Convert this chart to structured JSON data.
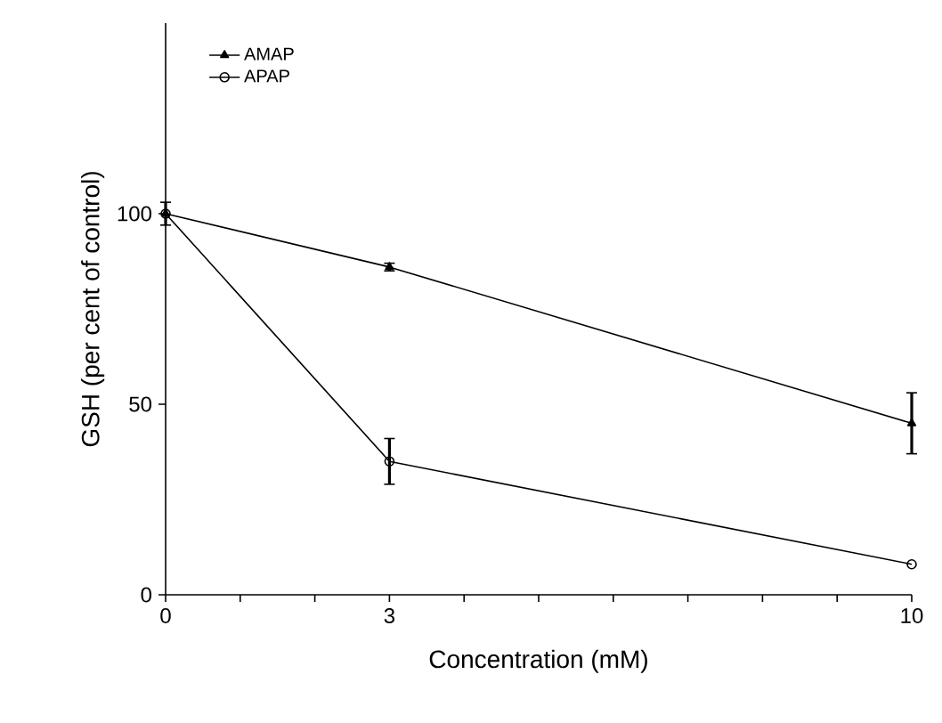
{
  "chart_data": {
    "type": "line",
    "xlabel": "Concentration (mM)",
    "ylabel": "GSH (per cent of control)",
    "x": [
      0,
      3,
      10
    ],
    "series": [
      {
        "name": "AMAP",
        "color": "#000000",
        "marker": "triangle",
        "values": [
          100,
          86,
          45
        ],
        "errors": [
          3,
          1,
          8
        ]
      },
      {
        "name": "APAP",
        "color": "#000000",
        "marker": "circle",
        "values": [
          100,
          35,
          8
        ],
        "errors": [
          null,
          6,
          null
        ]
      }
    ],
    "xlim": [
      0,
      10
    ],
    "ylim": [
      0,
      150
    ],
    "xticks": [
      0,
      {
        "value": 1,
        "label": null
      },
      {
        "value": 2,
        "label": null
      },
      3,
      {
        "value": 4,
        "label": null
      },
      {
        "value": 5,
        "label": null
      },
      {
        "value": 6,
        "label": null
      },
      {
        "value": 7,
        "label": null
      },
      {
        "value": 8,
        "label": null
      },
      {
        "value": 9,
        "label": null
      },
      10
    ],
    "yticks": [
      0,
      50,
      100
    ],
    "legend": "top left",
    "grid": false,
    "line_style": "solid"
  }
}
